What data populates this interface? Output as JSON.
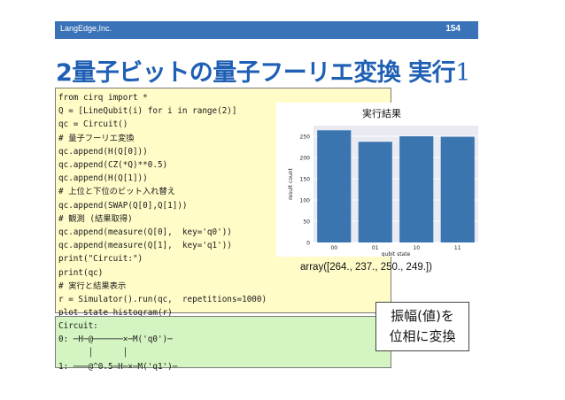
{
  "header": {
    "company": "LangEdge,Inc.",
    "page_number": "154"
  },
  "title": {
    "prefix": "2量子ビットの量子フーリエ変換 実行",
    "suffix": "1"
  },
  "code_lines": [
    "from cirq import *",
    "Q = [LineQubit(i) for i in range(2)]",
    "qc = Circuit()",
    "# 量子フーリエ変換",
    "qc.append(H(Q[0]))",
    "qc.append(CZ(*Q)**0.5)",
    "qc.append(H(Q[1]))",
    "# 上位と下位のビット入れ替え",
    "qc.append(SWAP(Q[0],Q[1]))",
    "# 観測 (結果取得)",
    "qc.append(measure(Q[0],  key='q0'))",
    "qc.append(measure(Q[1],  key='q1'))",
    "print(\"Circuit:\")",
    "print(qc)",
    "# 実行と結果表示",
    "r = Simulator().run(qc,  repetitions=1000)",
    "plot_state_histogram(r)"
  ],
  "output_lines": [
    "Circuit:",
    "0: ─H─@──────×─M('q0')─",
    "      │      │",
    "1: ───@^0.5─H─×─M('q1')─"
  ],
  "chart_data": {
    "type": "bar",
    "title": "実行結果",
    "categories": [
      "00",
      "01",
      "10",
      "11"
    ],
    "values": [
      264,
      237,
      250,
      249
    ],
    "xlabel": "qubit state",
    "ylabel": "result count",
    "ylim": [
      0,
      275
    ],
    "yticks": [
      "0",
      "50",
      "100",
      "150",
      "200",
      "250"
    ],
    "grid": true,
    "bar_color": "#3a75b0"
  },
  "array_text": "array([264., 237., 250., 249.])",
  "callout": {
    "line1": "振幅(値)を",
    "line2": "位相に変換"
  }
}
